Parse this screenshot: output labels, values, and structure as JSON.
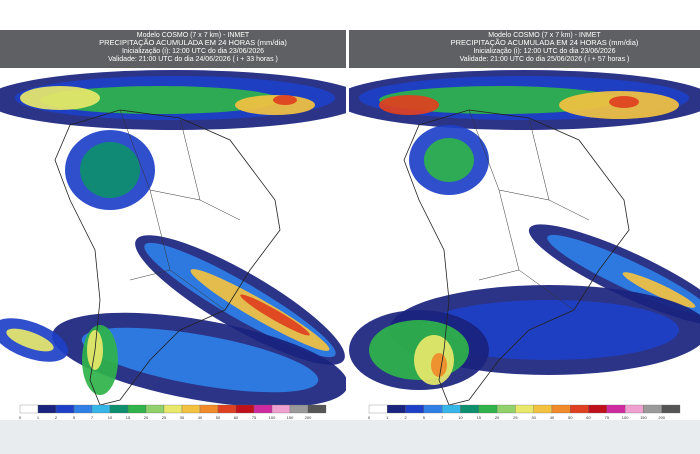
{
  "panels": [
    {
      "header": {
        "model": "Modelo COSMO (7 x 7 km) - INMET",
        "title": "PRECIPITAÇÃO ACUMULADA EM 24 HORAS (mm/dia)",
        "init": "Inicialização (i): 12:00 UTC do dia 23/06/2026",
        "valid": "Validade: 21:00 UTC do dia 24/06/2026 ( i + 33 horas )"
      }
    },
    {
      "header": {
        "model": "Modelo COSMO (7 x 7 km) - INMET",
        "title": "PRECIPITAÇÃO ACUMULADA EM 24 HORAS (mm/dia)",
        "init": "Inicialização (i): 12:00 UTC do dia 23/06/2026",
        "valid": "Validade: 21:00 UTC do dia 25/06/2026 ( i + 57 horas )"
      }
    }
  ],
  "legend": {
    "labels": [
      "0",
      "1",
      "2",
      "5",
      "7",
      "10",
      "15",
      "20",
      "25",
      "30",
      "40",
      "50",
      "60",
      "75",
      "100",
      "150",
      "200"
    ],
    "colors": [
      "#ffffff",
      "#1a237e",
      "#1e40c8",
      "#2f7fe6",
      "#36b7e8",
      "#0e8f6e",
      "#2fb34a",
      "#8fd16a",
      "#e8e86a",
      "#f3c240",
      "#f08a2a",
      "#e0401f",
      "#c0101a",
      "#d02aa0",
      "#f0a0d0",
      "#9a9a9a",
      "#555555"
    ]
  }
}
